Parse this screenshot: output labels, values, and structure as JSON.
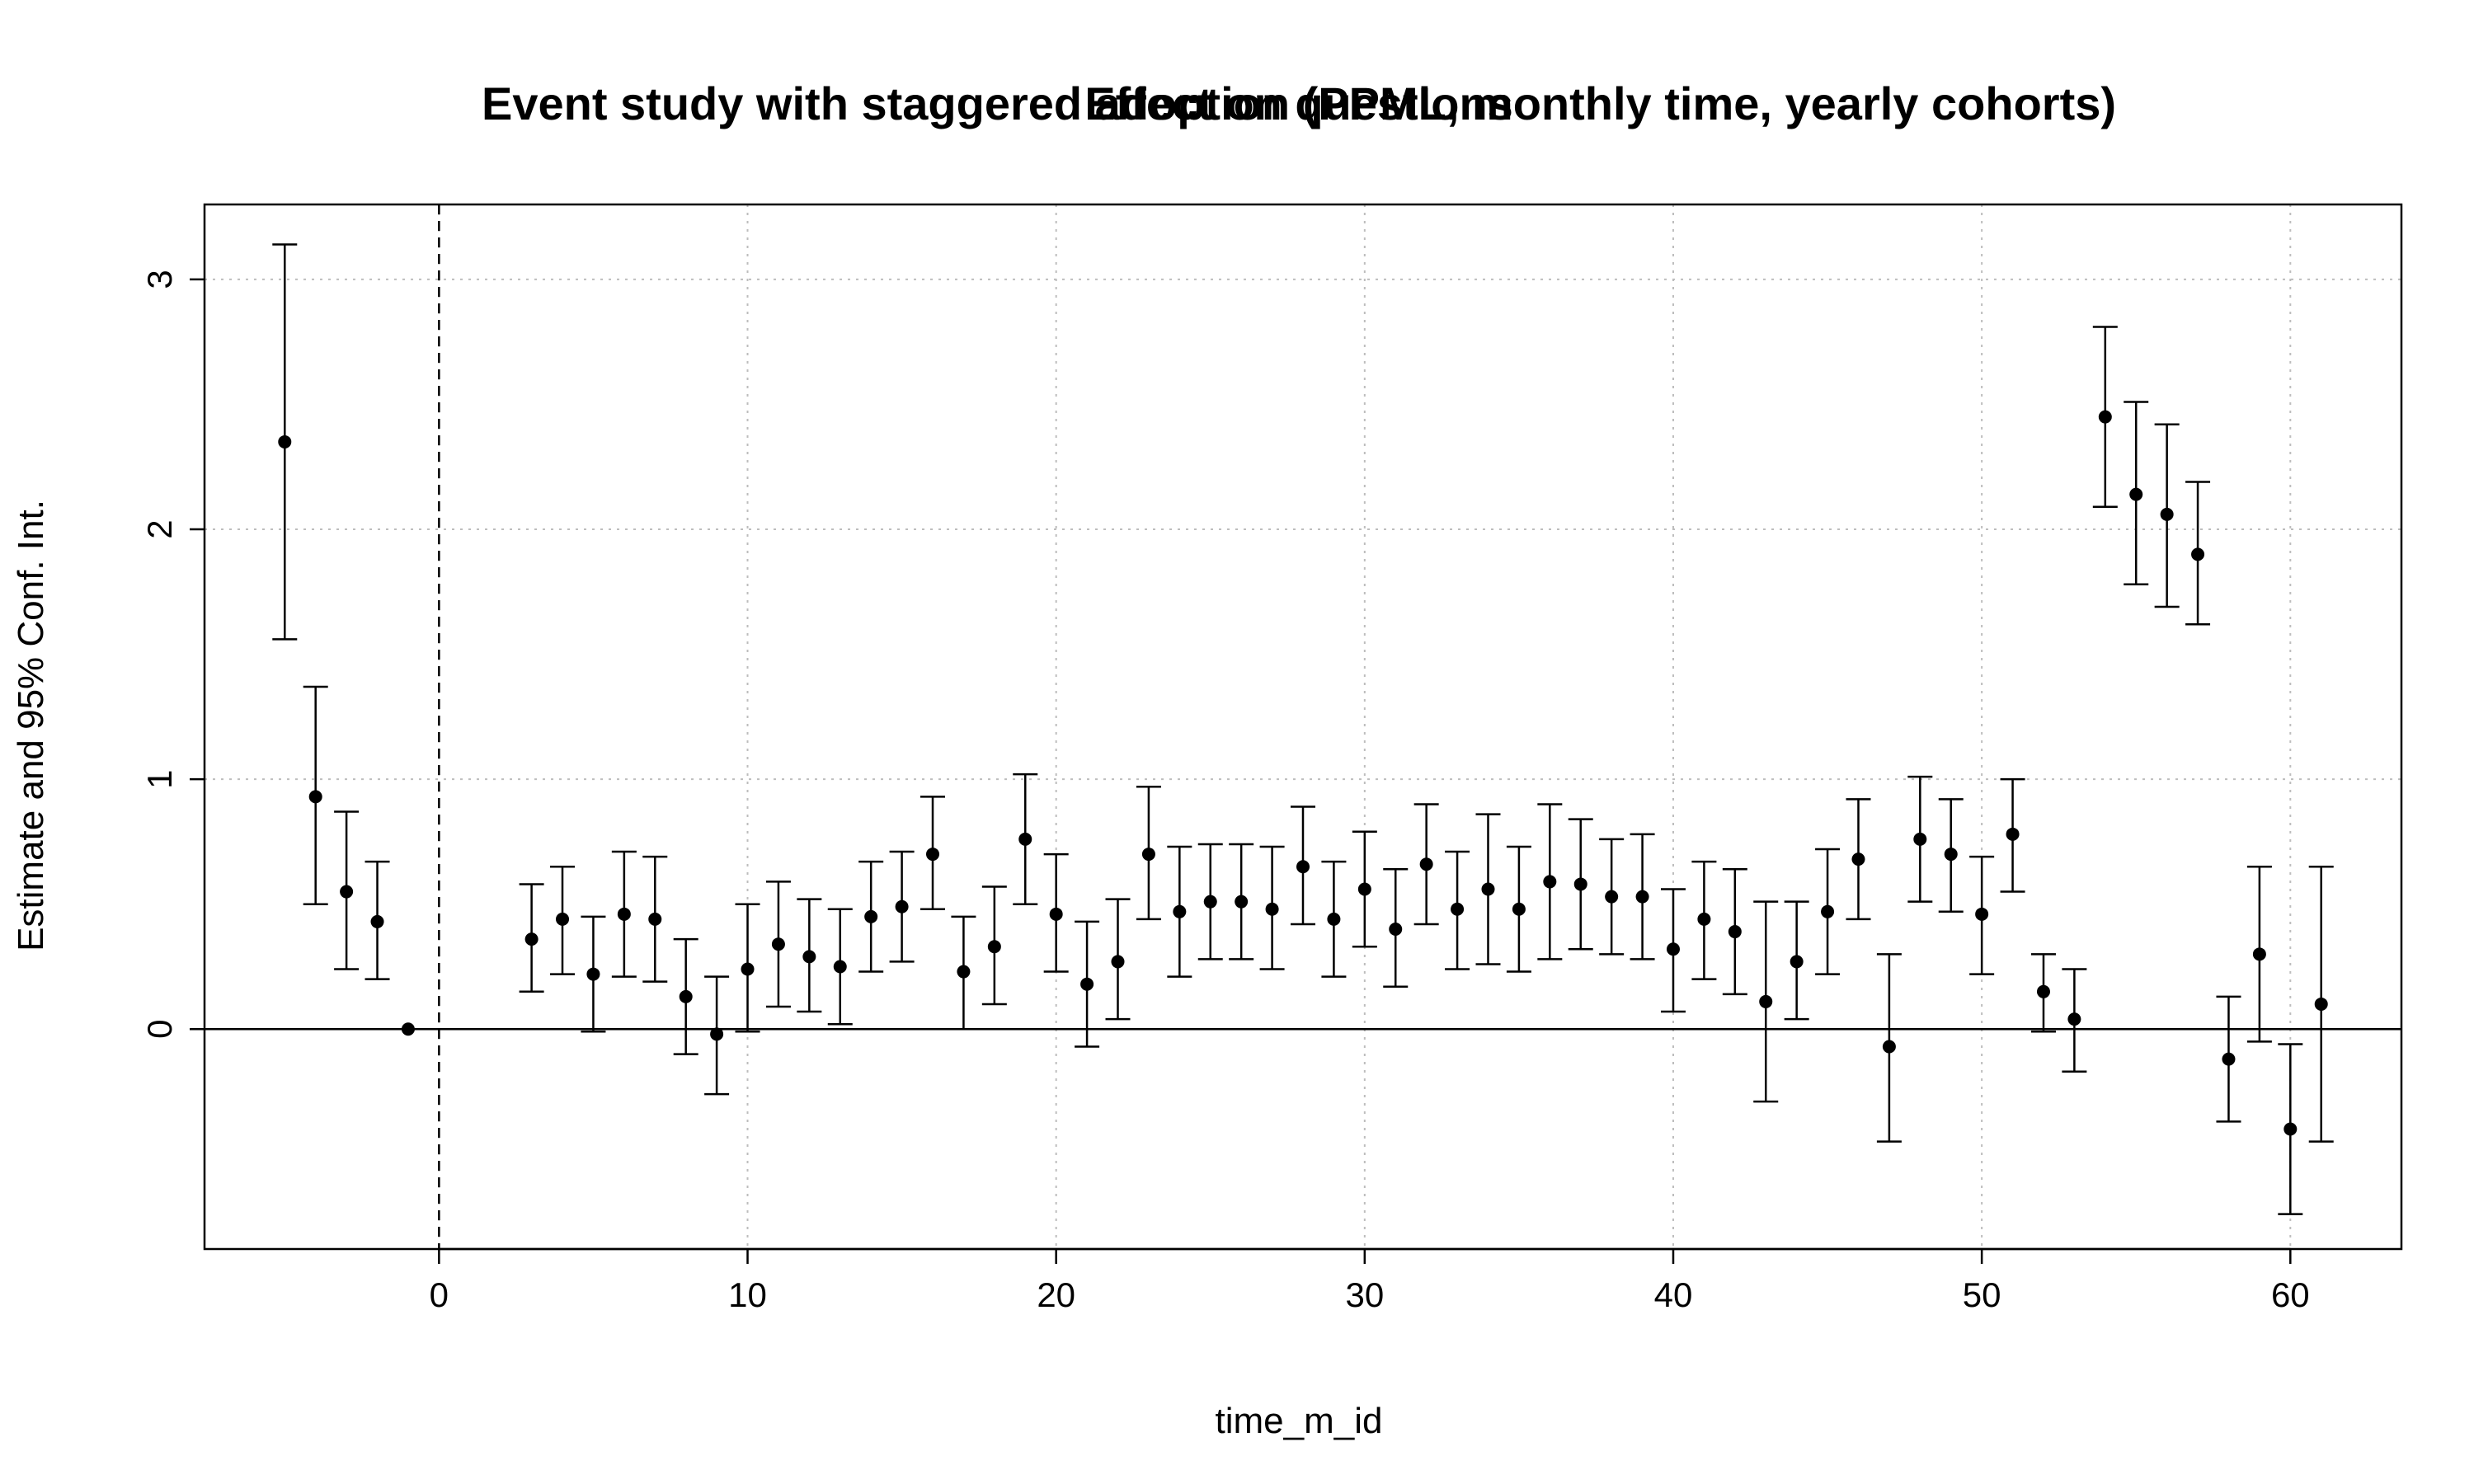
{
  "chart_data": {
    "type": "scatter",
    "titles": [
      "Event study with staggered adoption (PPML, monthly time, yearly cohorts)",
      "Effect on questions"
    ],
    "xlabel": "time_m_id",
    "ylabel": "Estimate and 95% Conf. Int.",
    "xlim": [
      -7.6,
      63.6
    ],
    "ylim": [
      -0.88,
      3.3
    ],
    "xticks": [
      0,
      10,
      20,
      30,
      40,
      50,
      60
    ],
    "yticks": [
      0,
      1,
      2,
      3
    ],
    "grid": true,
    "reference_lines": {
      "horizontal_solid": 0,
      "vertical_dashed": 0
    },
    "points": [
      {
        "x": -5,
        "y": 2.35,
        "lo": 1.56,
        "hi": 3.14
      },
      {
        "x": -4,
        "y": 0.93,
        "lo": 0.5,
        "hi": 1.37
      },
      {
        "x": -3,
        "y": 0.55,
        "lo": 0.24,
        "hi": 0.87
      },
      {
        "x": -2,
        "y": 0.43,
        "lo": 0.2,
        "hi": 0.67
      },
      {
        "x": -1,
        "y": 0.0,
        "lo": 0.0,
        "hi": 0.0
      },
      {
        "x": 3,
        "y": 0.36,
        "lo": 0.15,
        "hi": 0.58
      },
      {
        "x": 4,
        "y": 0.44,
        "lo": 0.22,
        "hi": 0.65
      },
      {
        "x": 5,
        "y": 0.22,
        "lo": -0.01,
        "hi": 0.45
      },
      {
        "x": 6,
        "y": 0.46,
        "lo": 0.21,
        "hi": 0.71
      },
      {
        "x": 7,
        "y": 0.44,
        "lo": 0.19,
        "hi": 0.69
      },
      {
        "x": 8,
        "y": 0.13,
        "lo": -0.1,
        "hi": 0.36
      },
      {
        "x": 9,
        "y": -0.02,
        "lo": -0.26,
        "hi": 0.21
      },
      {
        "x": 10,
        "y": 0.24,
        "lo": -0.01,
        "hi": 0.5
      },
      {
        "x": 11,
        "y": 0.34,
        "lo": 0.09,
        "hi": 0.59
      },
      {
        "x": 12,
        "y": 0.29,
        "lo": 0.07,
        "hi": 0.52
      },
      {
        "x": 13,
        "y": 0.25,
        "lo": 0.02,
        "hi": 0.48
      },
      {
        "x": 14,
        "y": 0.45,
        "lo": 0.23,
        "hi": 0.67
      },
      {
        "x": 15,
        "y": 0.49,
        "lo": 0.27,
        "hi": 0.71
      },
      {
        "x": 16,
        "y": 0.7,
        "lo": 0.48,
        "hi": 0.93
      },
      {
        "x": 17,
        "y": 0.23,
        "lo": 0.0,
        "hi": 0.45
      },
      {
        "x": 18,
        "y": 0.33,
        "lo": 0.1,
        "hi": 0.57
      },
      {
        "x": 19,
        "y": 0.76,
        "lo": 0.5,
        "hi": 1.02
      },
      {
        "x": 20,
        "y": 0.46,
        "lo": 0.23,
        "hi": 0.7
      },
      {
        "x": 21,
        "y": 0.18,
        "lo": -0.07,
        "hi": 0.43
      },
      {
        "x": 22,
        "y": 0.27,
        "lo": 0.04,
        "hi": 0.52
      },
      {
        "x": 23,
        "y": 0.7,
        "lo": 0.44,
        "hi": 0.97
      },
      {
        "x": 24,
        "y": 0.47,
        "lo": 0.21,
        "hi": 0.73
      },
      {
        "x": 25,
        "y": 0.51,
        "lo": 0.28,
        "hi": 0.74
      },
      {
        "x": 26,
        "y": 0.51,
        "lo": 0.28,
        "hi": 0.74
      },
      {
        "x": 27,
        "y": 0.48,
        "lo": 0.24,
        "hi": 0.73
      },
      {
        "x": 28,
        "y": 0.65,
        "lo": 0.42,
        "hi": 0.89
      },
      {
        "x": 29,
        "y": 0.44,
        "lo": 0.21,
        "hi": 0.67
      },
      {
        "x": 30,
        "y": 0.56,
        "lo": 0.33,
        "hi": 0.79
      },
      {
        "x": 31,
        "y": 0.4,
        "lo": 0.17,
        "hi": 0.64
      },
      {
        "x": 32,
        "y": 0.66,
        "lo": 0.42,
        "hi": 0.9
      },
      {
        "x": 33,
        "y": 0.48,
        "lo": 0.24,
        "hi": 0.71
      },
      {
        "x": 34,
        "y": 0.56,
        "lo": 0.26,
        "hi": 0.86
      },
      {
        "x": 35,
        "y": 0.48,
        "lo": 0.23,
        "hi": 0.73
      },
      {
        "x": 36,
        "y": 0.59,
        "lo": 0.28,
        "hi": 0.9
      },
      {
        "x": 37,
        "y": 0.58,
        "lo": 0.32,
        "hi": 0.84
      },
      {
        "x": 38,
        "y": 0.53,
        "lo": 0.3,
        "hi": 0.76
      },
      {
        "x": 39,
        "y": 0.53,
        "lo": 0.28,
        "hi": 0.78
      },
      {
        "x": 40,
        "y": 0.32,
        "lo": 0.07,
        "hi": 0.56
      },
      {
        "x": 41,
        "y": 0.44,
        "lo": 0.2,
        "hi": 0.67
      },
      {
        "x": 42,
        "y": 0.39,
        "lo": 0.14,
        "hi": 0.64
      },
      {
        "x": 43,
        "y": 0.11,
        "lo": -0.29,
        "hi": 0.51
      },
      {
        "x": 44,
        "y": 0.27,
        "lo": 0.04,
        "hi": 0.51
      },
      {
        "x": 45,
        "y": 0.47,
        "lo": 0.22,
        "hi": 0.72
      },
      {
        "x": 46,
        "y": 0.68,
        "lo": 0.44,
        "hi": 0.92
      },
      {
        "x": 47,
        "y": -0.07,
        "lo": -0.45,
        "hi": 0.3
      },
      {
        "x": 48,
        "y": 0.76,
        "lo": 0.51,
        "hi": 1.01
      },
      {
        "x": 49,
        "y": 0.7,
        "lo": 0.47,
        "hi": 0.92
      },
      {
        "x": 50,
        "y": 0.46,
        "lo": 0.22,
        "hi": 0.69
      },
      {
        "x": 51,
        "y": 0.78,
        "lo": 0.55,
        "hi": 1.0
      },
      {
        "x": 52,
        "y": 0.15,
        "lo": -0.01,
        "hi": 0.3
      },
      {
        "x": 53,
        "y": 0.04,
        "lo": -0.17,
        "hi": 0.24
      },
      {
        "x": 54,
        "y": 2.45,
        "lo": 2.09,
        "hi": 2.81
      },
      {
        "x": 55,
        "y": 2.14,
        "lo": 1.78,
        "hi": 2.51
      },
      {
        "x": 56,
        "y": 2.06,
        "lo": 1.69,
        "hi": 2.42
      },
      {
        "x": 57,
        "y": 1.9,
        "lo": 1.62,
        "hi": 2.19
      },
      {
        "x": 58,
        "y": -0.12,
        "lo": -0.37,
        "hi": 0.13
      },
      {
        "x": 59,
        "y": 0.3,
        "lo": -0.05,
        "hi": 0.65
      },
      {
        "x": 60,
        "y": -0.4,
        "lo": -0.74,
        "hi": -0.06
      },
      {
        "x": 61,
        "y": 0.1,
        "lo": -0.45,
        "hi": 0.65
      }
    ]
  }
}
